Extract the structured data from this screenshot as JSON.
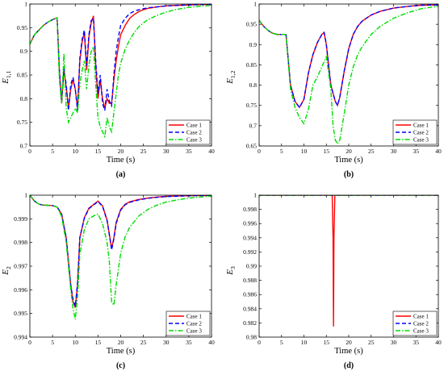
{
  "colors": {
    "case1": "#ff0000",
    "case2": "#0000ff",
    "case3": "#00dd00",
    "axis": "#000000",
    "background": "#ffffff"
  },
  "chart_data": [
    {
      "type": "line",
      "panel_label": "(a)",
      "xlabel": "Time (s)",
      "ylabel": "E",
      "ylabel_sub": "1,1",
      "xlim": [
        0,
        40
      ],
      "ylim": [
        0.7,
        1.0
      ],
      "xticks": [
        "0",
        "5",
        "10",
        "15",
        "20",
        "25",
        "30",
        "35",
        "40"
      ],
      "yticks": [
        "0.7",
        "0.75",
        "0.8",
        "0.85",
        "0.9",
        "0.95",
        "1"
      ],
      "grid": false,
      "legend": "bottom-right",
      "series": [
        {
          "name": "Case 1",
          "style": "solid",
          "x": [
            0,
            1,
            2,
            3,
            4,
            5,
            6,
            6.5,
            7,
            7.5,
            8,
            8.5,
            9,
            9.5,
            10,
            10.5,
            11,
            11.5,
            12,
            12.5,
            13,
            13.5,
            14,
            14.5,
            15,
            15.5,
            16,
            16.5,
            17,
            17.5,
            18,
            18.5,
            19,
            19.5,
            20,
            21,
            22,
            23,
            24,
            25,
            26,
            28,
            30,
            32,
            35,
            38,
            40
          ],
          "y": [
            0.915,
            0.935,
            0.945,
            0.955,
            0.962,
            0.967,
            0.971,
            0.86,
            0.79,
            0.86,
            0.825,
            0.78,
            0.82,
            0.84,
            0.82,
            0.78,
            0.88,
            0.92,
            0.94,
            0.86,
            0.93,
            0.96,
            0.975,
            0.87,
            0.8,
            0.84,
            0.8,
            0.78,
            0.8,
            0.79,
            0.79,
            0.84,
            0.88,
            0.91,
            0.935,
            0.955,
            0.97,
            0.978,
            0.984,
            0.988,
            0.991,
            0.994,
            0.996,
            0.997,
            0.998,
            0.999,
            0.999
          ]
        },
        {
          "name": "Case 2",
          "style": "dashed",
          "x": [
            0,
            1,
            2,
            3,
            4,
            5,
            6,
            6.5,
            7,
            7.5,
            8,
            8.5,
            9,
            9.5,
            10,
            10.5,
            11,
            11.5,
            12,
            12.5,
            13,
            13.5,
            14,
            14.5,
            15,
            15.5,
            16,
            16.5,
            17,
            17.5,
            18,
            18.5,
            19,
            19.5,
            20,
            21,
            22,
            23,
            24,
            25,
            26,
            28,
            30,
            32,
            35,
            38,
            40
          ],
          "y": [
            0.915,
            0.935,
            0.945,
            0.955,
            0.962,
            0.967,
            0.971,
            0.86,
            0.795,
            0.865,
            0.83,
            0.775,
            0.83,
            0.845,
            0.82,
            0.775,
            0.885,
            0.925,
            0.945,
            0.87,
            0.935,
            0.965,
            0.97,
            0.88,
            0.81,
            0.85,
            0.79,
            0.775,
            0.82,
            0.795,
            0.785,
            0.85,
            0.9,
            0.93,
            0.955,
            0.97,
            0.98,
            0.985,
            0.988,
            0.99,
            0.992,
            0.994,
            0.996,
            0.997,
            0.998,
            0.999,
            0.999
          ]
        },
        {
          "name": "Case 3",
          "style": "dashdot",
          "x": [
            0,
            1,
            2,
            3,
            4,
            5,
            6,
            6.5,
            7,
            7.5,
            8,
            8.5,
            9,
            9.5,
            10,
            10.5,
            11,
            11.5,
            12,
            12.5,
            13,
            13.5,
            14,
            14.5,
            15,
            15.5,
            16,
            16.5,
            17,
            17.5,
            18,
            18.5,
            19,
            19.5,
            20,
            21,
            22,
            23,
            24,
            25,
            26,
            28,
            30,
            32,
            35,
            38,
            40
          ],
          "y": [
            0.915,
            0.935,
            0.945,
            0.955,
            0.962,
            0.967,
            0.971,
            0.84,
            0.79,
            0.895,
            0.78,
            0.75,
            0.76,
            0.77,
            0.78,
            0.77,
            0.83,
            0.86,
            0.88,
            0.82,
            0.87,
            0.9,
            0.91,
            0.83,
            0.76,
            0.74,
            0.73,
            0.72,
            0.76,
            0.74,
            0.73,
            0.77,
            0.81,
            0.85,
            0.875,
            0.905,
            0.925,
            0.94,
            0.952,
            0.96,
            0.967,
            0.976,
            0.983,
            0.988,
            0.993,
            0.996,
            0.997
          ]
        }
      ]
    },
    {
      "type": "line",
      "panel_label": "(b)",
      "xlabel": "Time (s)",
      "ylabel": "E",
      "ylabel_sub": "1,2",
      "xlim": [
        0,
        40
      ],
      "ylim": [
        0.65,
        1.0
      ],
      "xticks": [
        "0",
        "5",
        "10",
        "15",
        "20",
        "25",
        "30",
        "35",
        "40"
      ],
      "yticks": [
        "0.65",
        "0.7",
        "0.75",
        "0.8",
        "0.85",
        "0.9",
        "0.95",
        "1"
      ],
      "grid": false,
      "legend": "bottom-right",
      "series": [
        {
          "name": "Case 1",
          "style": "solid",
          "x": [
            0,
            1,
            2,
            3,
            4,
            5,
            6,
            7,
            8,
            9,
            10,
            11,
            12,
            13,
            14,
            14.5,
            15,
            16,
            17,
            17.5,
            18,
            19,
            20,
            21,
            22,
            23,
            25,
            27,
            30,
            33,
            36,
            40
          ],
          "y": [
            0.96,
            0.945,
            0.935,
            0.928,
            0.925,
            0.925,
            0.925,
            0.8,
            0.76,
            0.745,
            0.765,
            0.83,
            0.875,
            0.905,
            0.925,
            0.93,
            0.9,
            0.8,
            0.76,
            0.75,
            0.77,
            0.835,
            0.89,
            0.925,
            0.945,
            0.958,
            0.973,
            0.982,
            0.99,
            0.994,
            0.997,
            0.998
          ]
        },
        {
          "name": "Case 2",
          "style": "dashed",
          "x": [
            0,
            1,
            2,
            3,
            4,
            5,
            6,
            7,
            8,
            9,
            10,
            11,
            12,
            13,
            14,
            14.5,
            15,
            16,
            17,
            17.5,
            18,
            19,
            20,
            21,
            22,
            23,
            25,
            27,
            30,
            33,
            36,
            40
          ],
          "y": [
            0.96,
            0.945,
            0.935,
            0.928,
            0.925,
            0.925,
            0.925,
            0.8,
            0.76,
            0.745,
            0.765,
            0.83,
            0.875,
            0.905,
            0.925,
            0.93,
            0.9,
            0.8,
            0.76,
            0.75,
            0.77,
            0.835,
            0.89,
            0.925,
            0.945,
            0.958,
            0.973,
            0.982,
            0.99,
            0.994,
            0.997,
            0.998
          ]
        },
        {
          "name": "Case 3",
          "style": "dashdot",
          "x": [
            0,
            1,
            2,
            3,
            4,
            5,
            6,
            7,
            8,
            9,
            10,
            11,
            12,
            13,
            14,
            15,
            16,
            16.5,
            17,
            17.5,
            18,
            19,
            20,
            21,
            22,
            23,
            25,
            27,
            30,
            33,
            36,
            40
          ],
          "y": [
            0.96,
            0.945,
            0.935,
            0.928,
            0.925,
            0.925,
            0.925,
            0.79,
            0.745,
            0.72,
            0.705,
            0.74,
            0.8,
            0.82,
            0.845,
            0.87,
            0.79,
            0.7,
            0.665,
            0.655,
            0.665,
            0.73,
            0.8,
            0.845,
            0.875,
            0.895,
            0.925,
            0.945,
            0.965,
            0.978,
            0.988,
            0.995
          ]
        }
      ]
    },
    {
      "type": "line",
      "panel_label": "(c)",
      "xlabel": "Time (s)",
      "ylabel": "E",
      "ylabel_sub": "2",
      "xlim": [
        0,
        40
      ],
      "ylim": [
        0.994,
        1.0
      ],
      "xticks": [
        "0",
        "5",
        "10",
        "15",
        "20",
        "25",
        "30",
        "35",
        "40"
      ],
      "yticks": [
        "0.994",
        "0.995",
        "0.996",
        "0.997",
        "0.998",
        "0.999",
        "1"
      ],
      "grid": false,
      "legend": "bottom-right",
      "series": [
        {
          "name": "Case 1",
          "style": "solid",
          "x": [
            0,
            1,
            2,
            3,
            4,
            5,
            6,
            7,
            8,
            9,
            9.5,
            10,
            10.5,
            11,
            12,
            13,
            14,
            15,
            16,
            17,
            17.5,
            18,
            18.5,
            19,
            20,
            21,
            22,
            24,
            26,
            28,
            30,
            33,
            36,
            40
          ],
          "y": [
            1.0,
            0.99975,
            0.99962,
            0.99958,
            0.99957,
            0.99956,
            0.9995,
            0.9992,
            0.9982,
            0.9962,
            0.9955,
            0.99525,
            0.9962,
            0.9982,
            0.99905,
            0.99945,
            0.9996,
            0.99975,
            0.99955,
            0.99895,
            0.99835,
            0.99775,
            0.9982,
            0.99885,
            0.9994,
            0.99962,
            0.99972,
            0.99982,
            0.99988,
            0.99992,
            0.99995,
            0.99997,
            0.99998,
            0.99999
          ]
        },
        {
          "name": "Case 2",
          "style": "dashed",
          "x": [
            0,
            1,
            2,
            3,
            4,
            5,
            6,
            7,
            8,
            9,
            9.5,
            10,
            10.5,
            11,
            12,
            13,
            14,
            15,
            16,
            17,
            17.5,
            18,
            18.5,
            19,
            20,
            21,
            22,
            24,
            26,
            28,
            30,
            33,
            36,
            40
          ],
          "y": [
            1.0,
            0.99975,
            0.99962,
            0.99958,
            0.99957,
            0.99956,
            0.9995,
            0.9992,
            0.9982,
            0.9962,
            0.9956,
            0.9953,
            0.9963,
            0.9982,
            0.99903,
            0.99943,
            0.99958,
            0.99973,
            0.99953,
            0.99893,
            0.99833,
            0.99768,
            0.99815,
            0.9988,
            0.99937,
            0.9996,
            0.9997,
            0.9998,
            0.99987,
            0.99991,
            0.99994,
            0.99996,
            0.99998,
            0.99999
          ]
        },
        {
          "name": "Case 3",
          "style": "dashdot",
          "x": [
            0,
            1,
            2,
            3,
            4,
            5,
            6,
            7,
            8,
            9,
            9.5,
            10,
            10.5,
            11,
            12,
            13,
            14,
            15,
            16,
            17,
            17.5,
            18,
            18.5,
            19,
            20,
            21,
            22,
            24,
            26,
            28,
            30,
            33,
            36,
            40
          ],
          "y": [
            1.0,
            0.99975,
            0.99962,
            0.99958,
            0.99957,
            0.99956,
            0.9995,
            0.9991,
            0.998,
            0.996,
            0.9952,
            0.99475,
            0.9957,
            0.9975,
            0.99855,
            0.999,
            0.99912,
            0.9992,
            0.9988,
            0.998,
            0.9972,
            0.9955,
            0.99535,
            0.9962,
            0.99755,
            0.99825,
            0.99865,
            0.99912,
            0.9994,
            0.99958,
            0.99971,
            0.99982,
            0.9999,
            0.99996
          ]
        }
      ]
    },
    {
      "type": "line",
      "panel_label": "(d)",
      "xlabel": "Time (s)",
      "ylabel": "E",
      "ylabel_sub": "3",
      "xlim": [
        0,
        40
      ],
      "ylim": [
        0.98,
        1.0
      ],
      "xticks": [
        "0",
        "5",
        "10",
        "15",
        "20",
        "25",
        "30",
        "35",
        "40"
      ],
      "yticks": [
        "0.98",
        "0.982",
        "0.984",
        "0.986",
        "0.988",
        "0.99",
        "0.992",
        "0.994",
        "0.996",
        "0.998",
        "1"
      ],
      "grid": false,
      "legend": "bottom-right",
      "series": [
        {
          "name": "Case 1",
          "style": "solid",
          "x": [
            0,
            16.3,
            16.5,
            16.6,
            16.7,
            16.9,
            40
          ],
          "y": [
            1.0,
            1.0,
            0.994,
            0.9815,
            0.994,
            1.0,
            1.0
          ]
        },
        {
          "name": "Case 2",
          "style": "dashed",
          "x": [
            0,
            40
          ],
          "y": [
            1.0,
            1.0
          ]
        },
        {
          "name": "Case 3",
          "style": "dashdot",
          "x": [
            0,
            40
          ],
          "y": [
            1.0,
            1.0
          ]
        }
      ]
    }
  ]
}
